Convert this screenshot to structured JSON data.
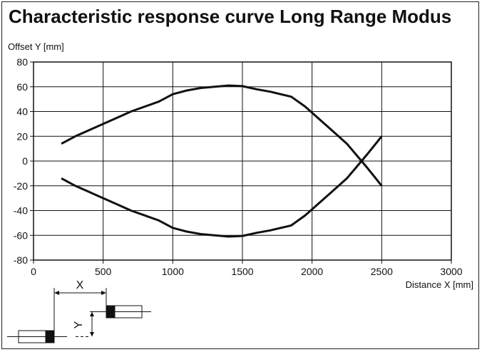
{
  "chart_data": {
    "type": "line",
    "title": "Characteristic response curve Long Range Modus",
    "ylabel": "Offset Y [mm]",
    "xlabel": "Distance X [mm]",
    "xlim": [
      0,
      3000
    ],
    "ylim": [
      -80,
      80
    ],
    "xticks": [
      0,
      500,
      1000,
      1500,
      2000,
      2500,
      3000
    ],
    "yticks": [
      80,
      60,
      40,
      20,
      0,
      -20,
      -40,
      -60,
      -80
    ],
    "grid": true,
    "series": [
      {
        "values_x": [
          200,
          300,
          400,
          500,
          600,
          700,
          800,
          900,
          1000,
          1100,
          1200,
          1300,
          1400,
          1500,
          1600,
          1700,
          1850,
          1950,
          2050,
          2150,
          2250,
          2340,
          2400,
          2450,
          2500
        ],
        "values_y": [
          14,
          20,
          25,
          30,
          35,
          40,
          44,
          48,
          54,
          57,
          59,
          60,
          61,
          60.5,
          58,
          56,
          52,
          44,
          34,
          24,
          14,
          2,
          -6,
          -13,
          -20
        ]
      },
      {
        "values_x": [
          200,
          300,
          400,
          500,
          600,
          700,
          800,
          900,
          1000,
          1100,
          1200,
          1300,
          1400,
          1500,
          1600,
          1700,
          1850,
          1950,
          2050,
          2150,
          2250,
          2340,
          2400,
          2450,
          2500
        ],
        "values_y": [
          -14,
          -20,
          -25,
          -30,
          -35,
          -40,
          -44,
          -48,
          -54,
          -57,
          -59,
          -60,
          -61,
          -60.5,
          -58,
          -56,
          -52,
          -44,
          -34,
          -24,
          -14,
          -2,
          6,
          13,
          20
        ]
      }
    ],
    "annotations": {
      "x_symbol": "X",
      "y_symbol": "Y"
    }
  }
}
